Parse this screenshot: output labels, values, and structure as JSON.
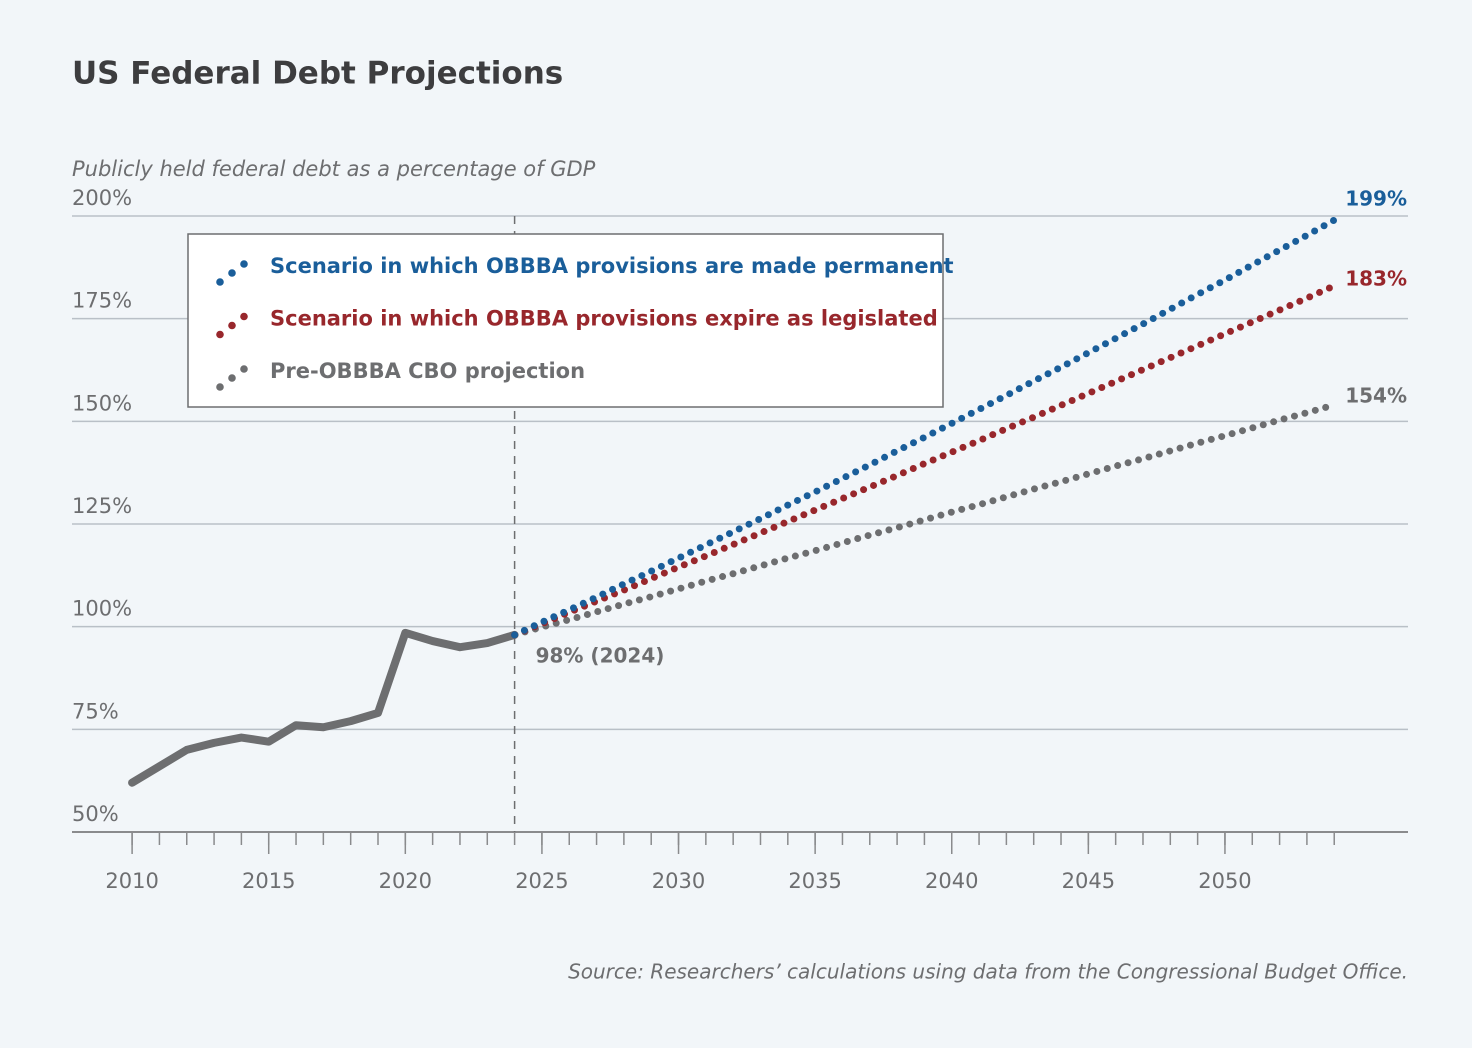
{
  "chart_data": {
    "type": "line",
    "title": "US Federal Debt Projections",
    "y_label": "Publicly held federal debt as a percentage of GDP",
    "source": "Source: Researchers’ calculations using data from the Congressional Budget Office.",
    "xlim": [
      2007.8,
      2056.7
    ],
    "xticks": [
      2010,
      2015,
      2020,
      2025,
      2030,
      2035,
      2040,
      2045,
      2050
    ],
    "xticks_minor": [
      2010,
      2011,
      2012,
      2013,
      2014,
      2015,
      2016,
      2017,
      2018,
      2019,
      2020,
      2021,
      2022,
      2023,
      2024,
      2025,
      2026,
      2027,
      2028,
      2029,
      2030,
      2031,
      2032,
      2033,
      2034,
      2035,
      2036,
      2037,
      2038,
      2039,
      2040,
      2041,
      2042,
      2043,
      2044,
      2045,
      2046,
      2047,
      2048,
      2049,
      2050,
      2051,
      2052,
      2053,
      2054
    ],
    "ylim": [
      50,
      200
    ],
    "yticks": [
      {
        "value": 50,
        "label": "50%"
      },
      {
        "value": 75,
        "label": "75%"
      },
      {
        "value": 100,
        "label": "100%"
      },
      {
        "value": 125,
        "label": "125%"
      },
      {
        "value": 150,
        "label": "150%"
      },
      {
        "value": 175,
        "label": "175%"
      },
      {
        "value": 200,
        "label": "200%"
      }
    ],
    "grid": true,
    "vline": 2024,
    "legend": "upper left",
    "series": [
      {
        "color": "#6d6e70",
        "style": "solid",
        "x": [
          2010,
          2011,
          2012,
          2013,
          2014,
          2015,
          2016,
          2017,
          2018,
          2019,
          2020,
          2021,
          2022,
          2023,
          2024
        ],
        "values": [
          62,
          66,
          70,
          71.7,
          73,
          72,
          76,
          75.5,
          77,
          79,
          98.5,
          96.5,
          95,
          96,
          98
        ]
      },
      {
        "name": "Pre-OBBBA CBO projection",
        "color": "#6d6e70",
        "style": "dotted",
        "x": [
          2024,
          2025,
          2026,
          2027,
          2028,
          2029,
          2030,
          2031,
          2032,
          2033,
          2034,
          2035,
          2036,
          2037,
          2038,
          2039,
          2040,
          2041,
          2042,
          2043,
          2044,
          2045,
          2046,
          2047,
          2048,
          2049,
          2050,
          2051,
          2052,
          2053,
          2054
        ],
        "values": [
          98,
          99.9,
          101.7,
          103.6,
          105.5,
          107.3,
          109.2,
          111.1,
          112.9,
          114.8,
          116.7,
          118.5,
          120.4,
          122.3,
          124.1,
          126,
          127.9,
          129.7,
          131.6,
          133.5,
          135.3,
          137.2,
          139.1,
          140.9,
          142.8,
          144.7,
          146.5,
          148.4,
          150.3,
          152.1,
          154
        ]
      },
      {
        "name": "Scenario in which OBBBA provisions expire as legislated",
        "color": "#98272c",
        "style": "dotted",
        "x": [
          2024,
          2025,
          2026,
          2027,
          2028,
          2029,
          2030,
          2031,
          2032,
          2033,
          2034,
          2035,
          2036,
          2037,
          2038,
          2039,
          2040,
          2041,
          2042,
          2043,
          2044,
          2045,
          2046,
          2047,
          2048,
          2049,
          2050,
          2051,
          2052,
          2053,
          2054
        ],
        "values": [
          98,
          100.7,
          103.5,
          106.2,
          108.9,
          111.7,
          114.5,
          117.2,
          120,
          122.8,
          125.6,
          128.4,
          131.2,
          134,
          136.8,
          139.7,
          142.5,
          145.3,
          148.2,
          151,
          153.9,
          156.8,
          159.7,
          162.6,
          165.5,
          168.4,
          171.3,
          174.2,
          177.1,
          180,
          183
        ]
      },
      {
        "name": "Scenario in which OBBBA provisions are made permanent",
        "color": "#1a5e9a",
        "style": "dotted",
        "x": [
          2024,
          2025,
          2026,
          2027,
          2028,
          2029,
          2030,
          2031,
          2032,
          2033,
          2034,
          2035,
          2036,
          2037,
          2038,
          2039,
          2040,
          2041,
          2042,
          2043,
          2044,
          2045,
          2046,
          2047,
          2048,
          2049,
          2050,
          2051,
          2052,
          2053,
          2054
        ],
        "values": [
          98,
          101.1,
          104.1,
          107.2,
          110.4,
          113.5,
          116.7,
          119.9,
          123.1,
          126.3,
          129.6,
          132.8,
          136.1,
          139.4,
          142.8,
          146.1,
          149.5,
          152.9,
          156.3,
          159.8,
          163.2,
          166.7,
          170.2,
          173.7,
          177.3,
          180.9,
          184.4,
          188.1,
          191.7,
          195.3,
          199
        ]
      }
    ],
    "annotations": [
      {
        "text": "98% (2024)",
        "x": 2024,
        "y": 98,
        "color": "#6d6e70"
      },
      {
        "text": "154%",
        "x": 2054,
        "y": 154,
        "color": "#6d6e70"
      },
      {
        "text": "183%",
        "x": 2054,
        "y": 183,
        "color": "#98272c"
      },
      {
        "text": "199%",
        "x": 2054,
        "y": 199,
        "color": "#1a5e9a"
      }
    ]
  }
}
